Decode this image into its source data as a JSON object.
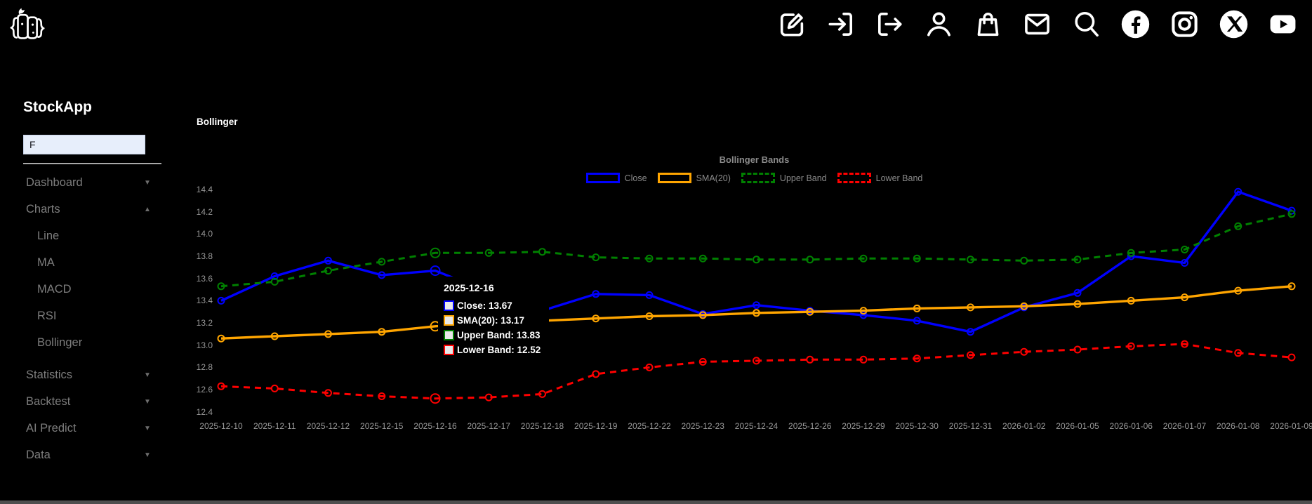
{
  "app": {
    "title": "StockApp"
  },
  "topbar": {
    "icons": [
      "edit",
      "login",
      "logout",
      "user",
      "shopping-bag",
      "mail",
      "search",
      "facebook",
      "instagram",
      "x-twitter",
      "youtube"
    ]
  },
  "sidebar": {
    "ticker_value": "F",
    "items": [
      {
        "label": "Dashboard",
        "level": "top",
        "arrow": "down"
      },
      {
        "label": "Charts",
        "level": "top",
        "arrow": "up"
      },
      {
        "label": "Line",
        "level": "sub",
        "arrow": ""
      },
      {
        "label": "MA",
        "level": "sub",
        "arrow": ""
      },
      {
        "label": "MACD",
        "level": "sub",
        "arrow": ""
      },
      {
        "label": "RSI",
        "level": "sub",
        "arrow": ""
      },
      {
        "label": "Bollinger",
        "level": "sub",
        "arrow": ""
      },
      {
        "label": "Statistics",
        "level": "top",
        "arrow": "down",
        "gap": true
      },
      {
        "label": "Backtest",
        "level": "top",
        "arrow": "down"
      },
      {
        "label": "AI Predict",
        "level": "top",
        "arrow": "down"
      },
      {
        "label": "Data",
        "level": "top",
        "arrow": "down"
      }
    ]
  },
  "main": {
    "heading": "Bollinger"
  },
  "chart_data": {
    "type": "line",
    "title": "Bollinger Bands",
    "legend_position": "top",
    "grid": false,
    "ylim": [
      12.4,
      14.4
    ],
    "ytick_step": 0.2,
    "x": [
      "2025-12-10",
      "2025-12-11",
      "2025-12-12",
      "2025-12-15",
      "2025-12-16",
      "2025-12-17",
      "2025-12-18",
      "2025-12-19",
      "2025-12-22",
      "2025-12-23",
      "2025-12-24",
      "2025-12-26",
      "2025-12-29",
      "2025-12-30",
      "2025-12-31",
      "2026-01-02",
      "2026-01-05",
      "2026-01-06",
      "2026-01-07",
      "2026-01-08",
      "2026-01-09"
    ],
    "series": [
      {
        "name": "Close",
        "color": "#0000ff",
        "dash": false,
        "values": [
          13.4,
          13.62,
          13.76,
          13.63,
          13.67,
          13.48,
          13.31,
          13.46,
          13.45,
          13.28,
          13.36,
          13.31,
          13.27,
          13.22,
          13.12,
          13.34,
          13.47,
          13.8,
          13.74,
          14.38,
          14.21
        ]
      },
      {
        "name": "SMA(20)",
        "color": "#ffa500",
        "dash": false,
        "values": [
          13.06,
          13.08,
          13.1,
          13.12,
          13.17,
          13.2,
          13.22,
          13.24,
          13.26,
          13.27,
          13.29,
          13.3,
          13.31,
          13.33,
          13.34,
          13.35,
          13.37,
          13.4,
          13.43,
          13.49,
          13.53
        ]
      },
      {
        "name": "Upper Band",
        "color": "#008000",
        "dash": true,
        "values": [
          13.53,
          13.57,
          13.67,
          13.75,
          13.83,
          13.83,
          13.84,
          13.79,
          13.78,
          13.78,
          13.77,
          13.77,
          13.78,
          13.78,
          13.77,
          13.76,
          13.77,
          13.83,
          13.86,
          14.07,
          14.18
        ]
      },
      {
        "name": "Lower Band",
        "color": "#ff0000",
        "dash": true,
        "values": [
          12.63,
          12.61,
          12.57,
          12.54,
          12.52,
          12.53,
          12.56,
          12.74,
          12.8,
          12.85,
          12.86,
          12.87,
          12.87,
          12.88,
          12.91,
          12.94,
          12.96,
          12.99,
          13.01,
          12.93,
          12.89
        ]
      }
    ],
    "highlighted_x": "2025-12-16"
  },
  "tooltip": {
    "date": "2025-12-16",
    "rows": [
      {
        "label": "Close",
        "value": "13.67",
        "color": "#0000ff"
      },
      {
        "label": "SMA(20)",
        "value": "13.17",
        "color": "#ffa500"
      },
      {
        "label": "Upper Band",
        "value": "13.83",
        "color": "#008000"
      },
      {
        "label": "Lower Band",
        "value": "12.52",
        "color": "#ff0000"
      }
    ]
  }
}
